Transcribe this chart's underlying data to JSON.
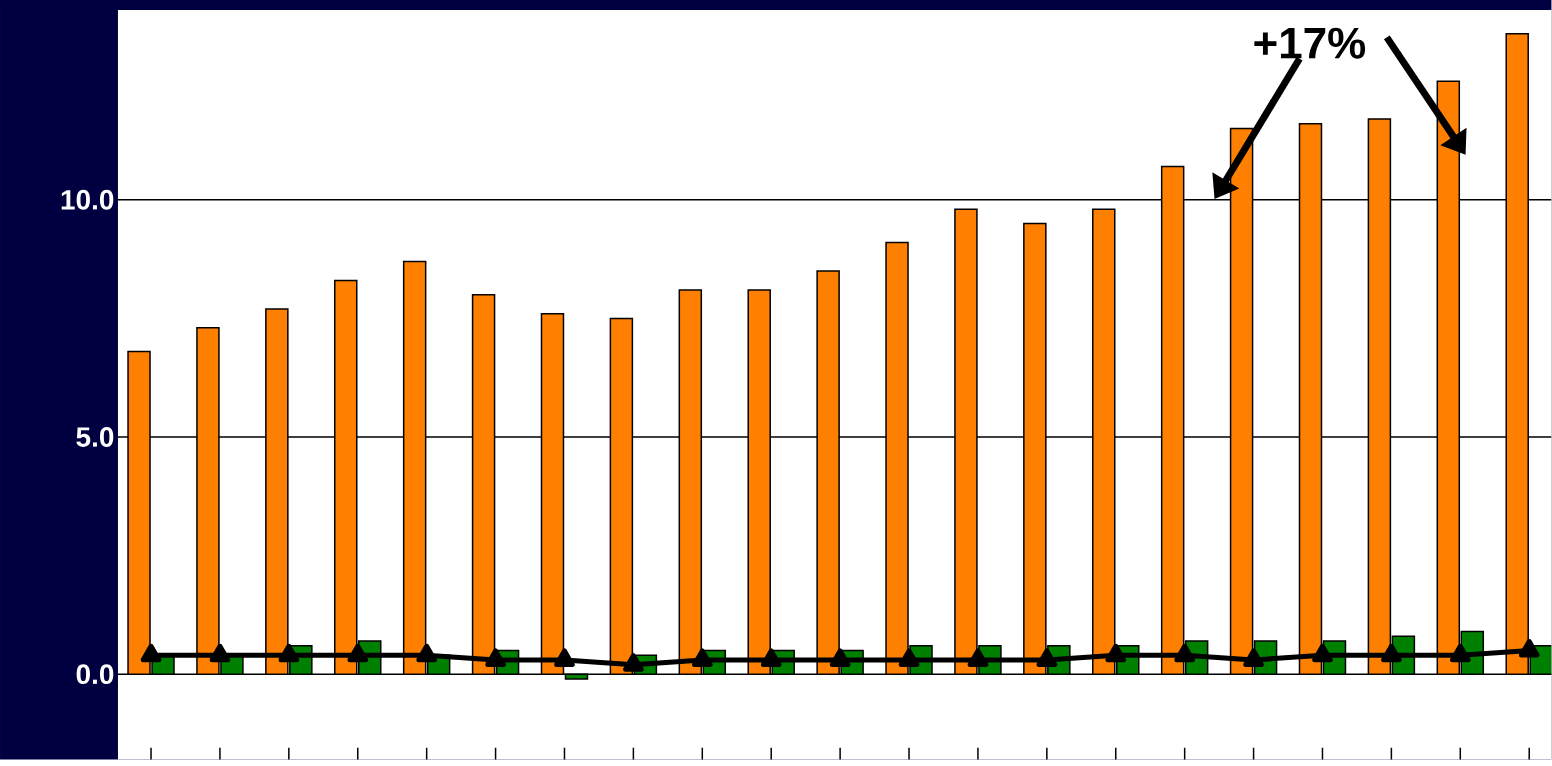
{
  "chart_data": {
    "type": "bar",
    "categories": [
      null,
      null,
      null,
      null,
      null,
      null,
      null,
      null,
      null,
      null,
      null,
      null,
      null,
      null,
      null,
      null,
      null,
      null,
      null,
      null,
      null
    ],
    "series": [
      {
        "color": "#ff8000",
        "values": [
          6.8,
          7.3,
          7.7,
          8.3,
          8.7,
          8.0,
          7.6,
          7.5,
          8.1,
          8.1,
          8.5,
          9.1,
          9.8,
          9.5,
          9.8,
          10.7,
          11.5,
          11.6,
          11.7,
          12.5,
          13.5
        ]
      },
      {
        "color": "#008000",
        "values": [
          0.4,
          0.4,
          0.6,
          0.7,
          0.4,
          0.5,
          -0.1,
          0.4,
          0.5,
          0.5,
          0.5,
          0.6,
          0.6,
          0.6,
          0.6,
          0.7,
          0.7,
          0.7,
          0.8,
          0.9,
          0.6
        ]
      },
      {
        "type": "line",
        "color": "#000000",
        "marker": "triangle",
        "line_style": "solid",
        "values": [
          0.4,
          0.4,
          0.4,
          0.4,
          0.4,
          0.3,
          0.3,
          0.2,
          0.3,
          0.3,
          0.3,
          0.3,
          0.3,
          0.3,
          0.4,
          0.4,
          0.3,
          0.4,
          0.4,
          0.4,
          0.5
        ]
      }
    ],
    "ylim": [
      -1.8,
      14.0
    ],
    "yticks": [
      {
        "value": 0,
        "label": "0.0"
      },
      {
        "value": 5,
        "label": "5.0"
      },
      {
        "value": 10,
        "label": "10.0"
      }
    ],
    "grid": "y",
    "tick_labels": "y",
    "annotations": [
      "+17%"
    ]
  }
}
